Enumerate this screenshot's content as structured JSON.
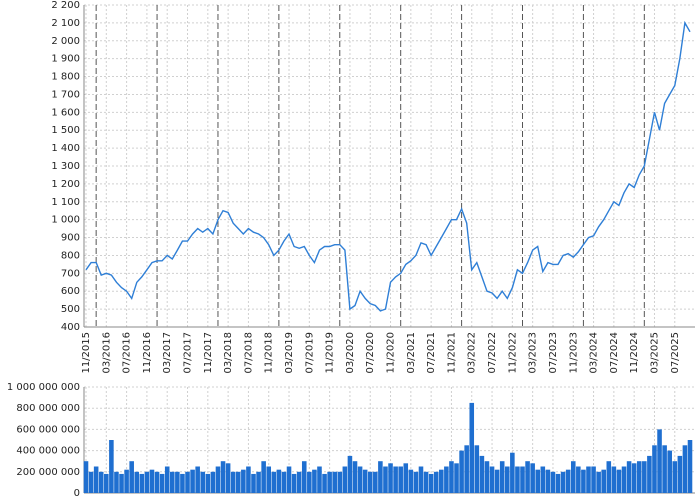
{
  "chart_data": [
    {
      "type": "line",
      "color": "#2f7fd6",
      "grid": true,
      "year_lines": true,
      "xlim": [
        "11/2015",
        "10/2025"
      ],
      "xticks": [
        "11/2015",
        "03/2016",
        "07/2016",
        "11/2016",
        "03/2017",
        "07/2017",
        "11/2017",
        "03/2018",
        "07/2018",
        "11/2018",
        "03/2019",
        "07/2019",
        "11/2019",
        "03/2020",
        "07/2020",
        "11/2020",
        "03/2021",
        "07/2021",
        "11/2021",
        "03/2022",
        "07/2022",
        "11/2022",
        "03/2023",
        "07/2023",
        "11/2023",
        "03/2024",
        "07/2024",
        "11/2024",
        "03/2025",
        "07/2025"
      ],
      "ylim": [
        400,
        2200
      ],
      "yticks": [
        400,
        500,
        600,
        700,
        800,
        900,
        {
          "value": 1000,
          "label": "1 000"
        },
        {
          "value": 1100,
          "label": "1 100"
        },
        {
          "value": 1200,
          "label": "1 200"
        },
        {
          "value": 1300,
          "label": "1 300"
        },
        {
          "value": 1400,
          "label": "1 400"
        },
        {
          "value": 1500,
          "label": "1 500"
        },
        {
          "value": 1600,
          "label": "1 600"
        },
        {
          "value": 1700,
          "label": "1 700"
        },
        {
          "value": 1800,
          "label": "1 800"
        },
        {
          "value": 1900,
          "label": "1 900"
        },
        {
          "value": 2000,
          "label": "2 000"
        },
        {
          "value": 2100,
          "label": "2 100"
        },
        {
          "value": 2200,
          "label": "2 200"
        }
      ],
      "x": [
        "11/2015",
        "12/2015",
        "01/2016",
        "02/2016",
        "03/2016",
        "04/2016",
        "05/2016",
        "06/2016",
        "07/2016",
        "08/2016",
        "09/2016",
        "10/2016",
        "11/2016",
        "12/2016",
        "01/2017",
        "02/2017",
        "03/2017",
        "04/2017",
        "05/2017",
        "06/2017",
        "07/2017",
        "08/2017",
        "09/2017",
        "10/2017",
        "11/2017",
        "12/2017",
        "01/2018",
        "02/2018",
        "03/2018",
        "04/2018",
        "05/2018",
        "06/2018",
        "07/2018",
        "08/2018",
        "09/2018",
        "10/2018",
        "11/2018",
        "12/2018",
        "01/2019",
        "02/2019",
        "03/2019",
        "04/2019",
        "05/2019",
        "06/2019",
        "07/2019",
        "08/2019",
        "09/2019",
        "10/2019",
        "11/2019",
        "12/2019",
        "01/2020",
        "02/2020",
        "03/2020",
        "04/2020",
        "05/2020",
        "06/2020",
        "07/2020",
        "08/2020",
        "09/2020",
        "10/2020",
        "11/2020",
        "12/2020",
        "01/2021",
        "02/2021",
        "03/2021",
        "04/2021",
        "05/2021",
        "06/2021",
        "07/2021",
        "08/2021",
        "09/2021",
        "10/2021",
        "11/2021",
        "12/2021",
        "01/2022",
        "02/2022",
        "03/2022",
        "04/2022",
        "05/2022",
        "06/2022",
        "07/2022",
        "08/2022",
        "09/2022",
        "10/2022",
        "11/2022",
        "12/2022",
        "01/2023",
        "02/2023",
        "03/2023",
        "04/2023",
        "05/2023",
        "06/2023",
        "07/2023",
        "08/2023",
        "09/2023",
        "10/2023",
        "11/2023",
        "12/2023",
        "01/2024",
        "02/2024",
        "03/2024",
        "04/2024",
        "05/2024",
        "06/2024",
        "07/2024",
        "08/2024",
        "09/2024",
        "10/2024",
        "11/2024",
        "12/2024",
        "01/2025",
        "02/2025",
        "03/2025",
        "04/2025",
        "05/2025",
        "06/2025",
        "07/2025",
        "08/2025",
        "09/2025",
        "10/2025"
      ],
      "values": [
        720,
        760,
        760,
        690,
        700,
        690,
        650,
        620,
        600,
        560,
        650,
        680,
        720,
        760,
        770,
        770,
        800,
        780,
        830,
        880,
        880,
        920,
        950,
        930,
        950,
        920,
        1000,
        1050,
        1040,
        980,
        950,
        920,
        950,
        930,
        920,
        900,
        860,
        800,
        830,
        880,
        920,
        850,
        840,
        850,
        800,
        760,
        830,
        850,
        850,
        860,
        860,
        830,
        500,
        520,
        600,
        560,
        530,
        520,
        490,
        500,
        650,
        680,
        700,
        750,
        770,
        800,
        870,
        860,
        800,
        850,
        900,
        950,
        1000,
        1000,
        1060,
        980,
        720,
        760,
        680,
        600,
        590,
        560,
        600,
        560,
        620,
        720,
        700,
        760,
        830,
        850,
        710,
        760,
        750,
        750,
        800,
        810,
        790,
        820,
        860,
        900,
        910,
        960,
        1000,
        1050,
        1100,
        1080,
        1150,
        1200,
        1180,
        1250,
        1300,
        1450,
        1600,
        1500,
        1650,
        1700,
        1750,
        1900,
        2100,
        2050
      ]
    },
    {
      "type": "bar",
      "color": "#1f6fd0",
      "grid": true,
      "xlim": [
        "11/2015",
        "10/2025"
      ],
      "ylim": [
        0,
        1000000000
      ],
      "yticks": [
        0,
        {
          "value": 200000000,
          "label": "200 000 000"
        },
        {
          "value": 400000000,
          "label": "400 000 000"
        },
        {
          "value": 600000000,
          "label": "600 000 000"
        },
        {
          "value": 800000000,
          "label": "800 000 000"
        },
        {
          "value": 1000000000,
          "label": "1 000 000 000"
        }
      ],
      "x": [
        "11/2015",
        "12/2015",
        "01/2016",
        "02/2016",
        "03/2016",
        "04/2016",
        "05/2016",
        "06/2016",
        "07/2016",
        "08/2016",
        "09/2016",
        "10/2016",
        "11/2016",
        "12/2016",
        "01/2017",
        "02/2017",
        "03/2017",
        "04/2017",
        "05/2017",
        "06/2017",
        "07/2017",
        "08/2017",
        "09/2017",
        "10/2017",
        "11/2017",
        "12/2017",
        "01/2018",
        "02/2018",
        "03/2018",
        "04/2018",
        "05/2018",
        "06/2018",
        "07/2018",
        "08/2018",
        "09/2018",
        "10/2018",
        "11/2018",
        "12/2018",
        "01/2019",
        "02/2019",
        "03/2019",
        "04/2019",
        "05/2019",
        "06/2019",
        "07/2019",
        "08/2019",
        "09/2019",
        "10/2019",
        "11/2019",
        "12/2019",
        "01/2020",
        "02/2020",
        "03/2020",
        "04/2020",
        "05/2020",
        "06/2020",
        "07/2020",
        "08/2020",
        "09/2020",
        "10/2020",
        "11/2020",
        "12/2020",
        "01/2021",
        "02/2021",
        "03/2021",
        "04/2021",
        "05/2021",
        "06/2021",
        "07/2021",
        "08/2021",
        "09/2021",
        "10/2021",
        "11/2021",
        "12/2021",
        "01/2022",
        "02/2022",
        "03/2022",
        "04/2022",
        "05/2022",
        "06/2022",
        "07/2022",
        "08/2022",
        "09/2022",
        "10/2022",
        "11/2022",
        "12/2022",
        "01/2023",
        "02/2023",
        "03/2023",
        "04/2023",
        "05/2023",
        "06/2023",
        "07/2023",
        "08/2023",
        "09/2023",
        "10/2023",
        "11/2023",
        "12/2023",
        "01/2024",
        "02/2024",
        "03/2024",
        "04/2024",
        "05/2024",
        "06/2024",
        "07/2024",
        "08/2024",
        "09/2024",
        "10/2024",
        "11/2024",
        "12/2024",
        "01/2025",
        "02/2025",
        "03/2025",
        "04/2025",
        "05/2025",
        "06/2025",
        "07/2025",
        "08/2025",
        "09/2025",
        "10/2025"
      ],
      "values": [
        300000000,
        200000000,
        250000000,
        200000000,
        180000000,
        500000000,
        200000000,
        180000000,
        220000000,
        300000000,
        200000000,
        180000000,
        200000000,
        220000000,
        200000000,
        180000000,
        250000000,
        200000000,
        200000000,
        180000000,
        200000000,
        220000000,
        250000000,
        200000000,
        180000000,
        200000000,
        250000000,
        300000000,
        280000000,
        200000000,
        200000000,
        220000000,
        250000000,
        180000000,
        200000000,
        300000000,
        250000000,
        200000000,
        220000000,
        200000000,
        250000000,
        180000000,
        200000000,
        300000000,
        200000000,
        220000000,
        250000000,
        180000000,
        200000000,
        200000000,
        200000000,
        250000000,
        350000000,
        300000000,
        250000000,
        220000000,
        200000000,
        200000000,
        300000000,
        250000000,
        280000000,
        250000000,
        250000000,
        280000000,
        220000000,
        200000000,
        250000000,
        200000000,
        180000000,
        200000000,
        220000000,
        250000000,
        300000000,
        280000000,
        400000000,
        450000000,
        850000000,
        450000000,
        350000000,
        300000000,
        250000000,
        220000000,
        300000000,
        250000000,
        380000000,
        250000000,
        250000000,
        300000000,
        280000000,
        220000000,
        250000000,
        220000000,
        200000000,
        180000000,
        200000000,
        220000000,
        300000000,
        250000000,
        220000000,
        250000000,
        250000000,
        200000000,
        220000000,
        300000000,
        250000000,
        220000000,
        250000000,
        300000000,
        280000000,
        300000000,
        300000000,
        350000000,
        450000000,
        600000000,
        450000000,
        400000000,
        300000000,
        350000000,
        450000000,
        500000000
      ]
    }
  ]
}
